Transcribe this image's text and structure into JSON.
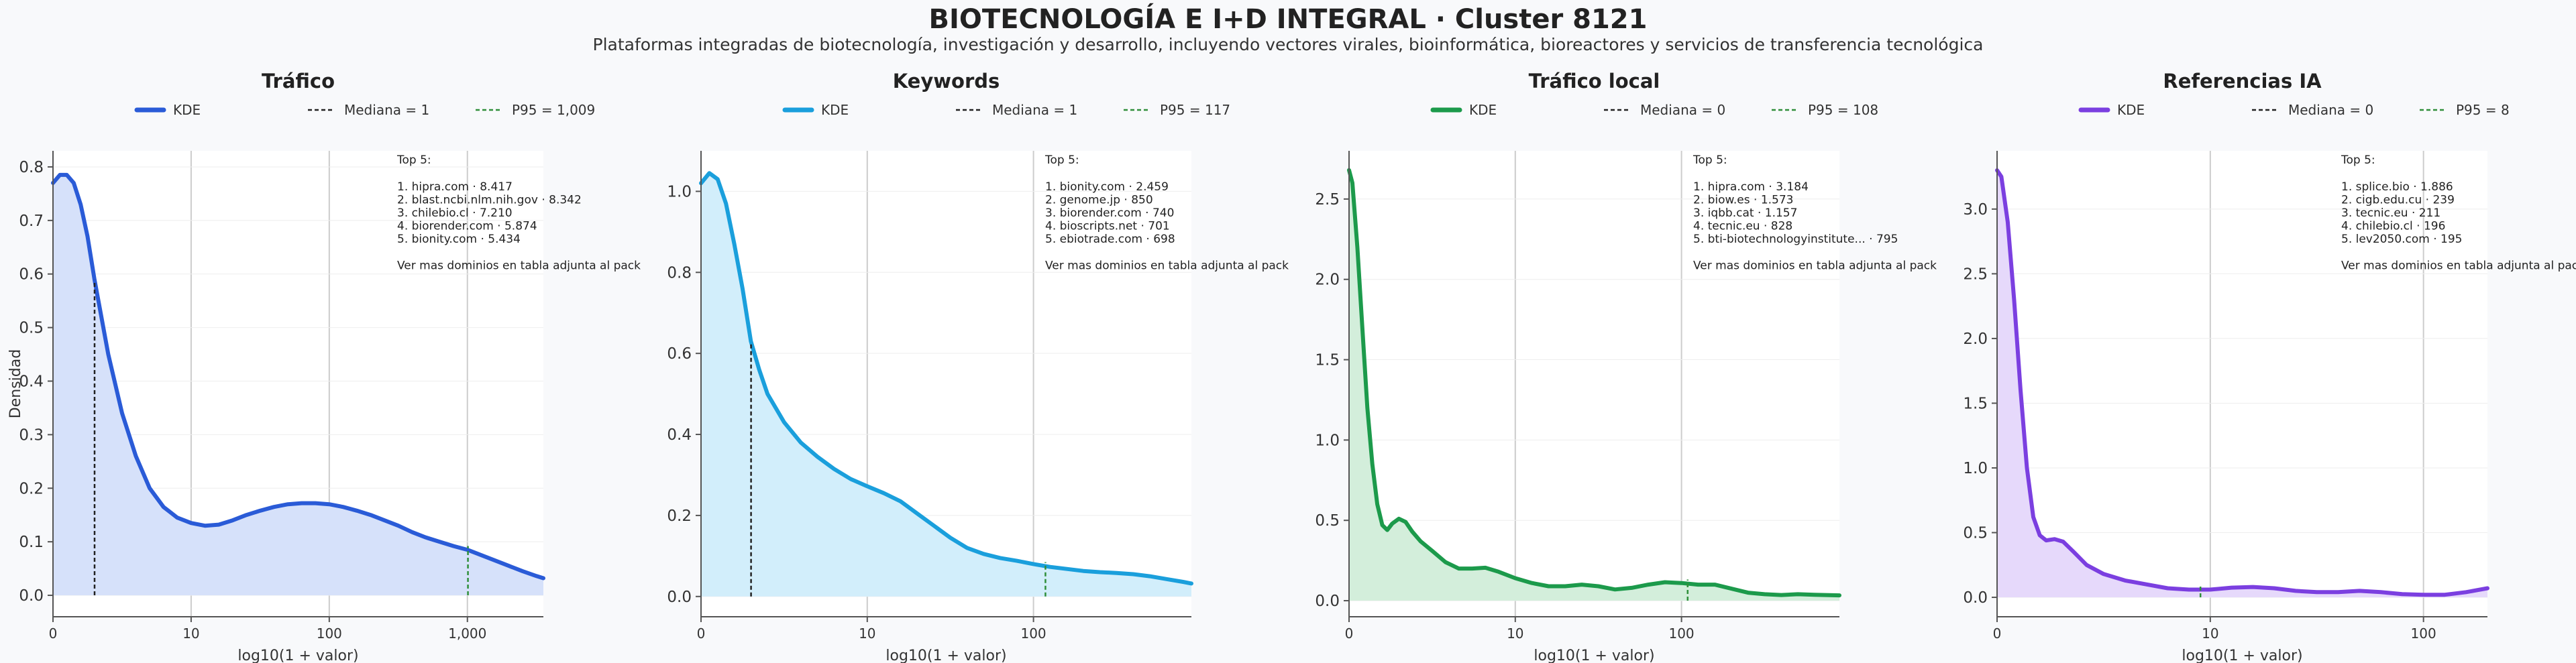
{
  "title": "BIOTECNOLOGÍA E I+D INTEGRAL · Cluster 8121",
  "subtitle": "Plataformas integradas de biotecnología, investigación y desarrollo, incluyendo vectores virales, bioinformática, bioreactores y servicios de transferencia tecnológica",
  "shared": {
    "ylabel": "Densidad",
    "xlabel": "log10(1 + valor)",
    "legend_kde": "KDE",
    "top_heading": "Top 5:",
    "more_note": "Ver mas dominios en tabla adjunta al pack"
  },
  "colors": {
    "background": "#f8f9fb",
    "median_line": "#222222",
    "p95_line": "#2f8f3a"
  },
  "chart_data": [
    {
      "type": "area",
      "title": "Tráfico",
      "color": "#2a5bd7",
      "fill": "#d6e1fa",
      "x_scale": "log10(1+x)",
      "xlim": [
        0,
        3.55
      ],
      "ylim": [
        -0.04,
        0.83
      ],
      "x_ticks": [
        {
          "value": 0,
          "label": "0"
        },
        {
          "value": 1,
          "label": "10"
        },
        {
          "value": 2,
          "label": "100"
        },
        {
          "value": 3,
          "label": "1,000"
        }
      ],
      "y_ticks": [
        {
          "value": 0,
          "label": "0.0"
        },
        {
          "value": 0.1,
          "label": "0.1"
        },
        {
          "value": 0.2,
          "label": "0.2"
        },
        {
          "value": 0.3,
          "label": "0.3"
        },
        {
          "value": 0.4,
          "label": "0.4"
        },
        {
          "value": 0.5,
          "label": "0.5"
        },
        {
          "value": 0.6,
          "label": "0.6"
        },
        {
          "value": 0.7,
          "label": "0.7"
        },
        {
          "value": 0.8,
          "label": "0.8"
        }
      ],
      "median": {
        "label": "Mediana = 1",
        "x": 0.301
      },
      "p95": {
        "label": "P95 = 1,009",
        "x": 3.004
      },
      "kde": [
        [
          0,
          0.77
        ],
        [
          0.05,
          0.785
        ],
        [
          0.1,
          0.785
        ],
        [
          0.15,
          0.77
        ],
        [
          0.2,
          0.73
        ],
        [
          0.25,
          0.67
        ],
        [
          0.3,
          0.59
        ],
        [
          0.35,
          0.52
        ],
        [
          0.4,
          0.45
        ],
        [
          0.5,
          0.34
        ],
        [
          0.6,
          0.26
        ],
        [
          0.7,
          0.2
        ],
        [
          0.8,
          0.165
        ],
        [
          0.9,
          0.145
        ],
        [
          1.0,
          0.135
        ],
        [
          1.1,
          0.13
        ],
        [
          1.2,
          0.132
        ],
        [
          1.3,
          0.14
        ],
        [
          1.4,
          0.15
        ],
        [
          1.5,
          0.158
        ],
        [
          1.6,
          0.165
        ],
        [
          1.7,
          0.17
        ],
        [
          1.8,
          0.172
        ],
        [
          1.9,
          0.172
        ],
        [
          2.0,
          0.17
        ],
        [
          2.1,
          0.165
        ],
        [
          2.2,
          0.158
        ],
        [
          2.3,
          0.15
        ],
        [
          2.4,
          0.14
        ],
        [
          2.5,
          0.13
        ],
        [
          2.6,
          0.118
        ],
        [
          2.7,
          0.108
        ],
        [
          2.8,
          0.1
        ],
        [
          2.9,
          0.092
        ],
        [
          3.0,
          0.085
        ],
        [
          3.1,
          0.075
        ],
        [
          3.2,
          0.065
        ],
        [
          3.3,
          0.055
        ],
        [
          3.4,
          0.045
        ],
        [
          3.5,
          0.036
        ],
        [
          3.55,
          0.032
        ]
      ],
      "top5": [
        "1. hipra.com · 8.417",
        "2. blast.ncbi.nlm.nih.gov · 8.342",
        "3. chilebio.cl · 7.210",
        "4. biorender.com · 5.874",
        "5. bionity.com · 5.434"
      ]
    },
    {
      "type": "area",
      "title": "Keywords",
      "color": "#1a9fdc",
      "fill": "#d2eefb",
      "x_scale": "log10(1+x)",
      "xlim": [
        0,
        2.95
      ],
      "ylim": [
        -0.05,
        1.1
      ],
      "x_ticks": [
        {
          "value": 0,
          "label": "0"
        },
        {
          "value": 1,
          "label": "10"
        },
        {
          "value": 2,
          "label": "100"
        }
      ],
      "y_ticks": [
        {
          "value": 0,
          "label": "0.0"
        },
        {
          "value": 0.2,
          "label": "0.2"
        },
        {
          "value": 0.4,
          "label": "0.4"
        },
        {
          "value": 0.6,
          "label": "0.6"
        },
        {
          "value": 0.8,
          "label": "0.8"
        },
        {
          "value": 1.0,
          "label": "1.0"
        }
      ],
      "median": {
        "label": "Mediana = 1",
        "x": 0.301
      },
      "p95": {
        "label": "P95 = 117",
        "x": 2.072
      },
      "kde": [
        [
          0,
          1.02
        ],
        [
          0.05,
          1.045
        ],
        [
          0.1,
          1.03
        ],
        [
          0.15,
          0.97
        ],
        [
          0.2,
          0.87
        ],
        [
          0.25,
          0.76
        ],
        [
          0.3,
          0.63
        ],
        [
          0.35,
          0.56
        ],
        [
          0.4,
          0.5
        ],
        [
          0.5,
          0.43
        ],
        [
          0.6,
          0.38
        ],
        [
          0.7,
          0.345
        ],
        [
          0.8,
          0.315
        ],
        [
          0.9,
          0.29
        ],
        [
          1.0,
          0.272
        ],
        [
          1.1,
          0.255
        ],
        [
          1.2,
          0.235
        ],
        [
          1.3,
          0.205
        ],
        [
          1.4,
          0.175
        ],
        [
          1.5,
          0.145
        ],
        [
          1.6,
          0.12
        ],
        [
          1.7,
          0.105
        ],
        [
          1.8,
          0.095
        ],
        [
          1.9,
          0.088
        ],
        [
          2.0,
          0.08
        ],
        [
          2.1,
          0.073
        ],
        [
          2.2,
          0.068
        ],
        [
          2.3,
          0.063
        ],
        [
          2.4,
          0.06
        ],
        [
          2.5,
          0.058
        ],
        [
          2.6,
          0.055
        ],
        [
          2.7,
          0.05
        ],
        [
          2.8,
          0.043
        ],
        [
          2.9,
          0.036
        ],
        [
          2.95,
          0.032
        ]
      ],
      "top5": [
        "1. bionity.com · 2.459",
        "2. genome.jp · 850",
        "3. biorender.com · 740",
        "4. bioscripts.net · 701",
        "5. ebiotrade.com · 698"
      ]
    },
    {
      "type": "area",
      "title": "Tráfico local",
      "color": "#1c9a4b",
      "fill": "#d3eedb",
      "x_scale": "log10(1+x)",
      "xlim": [
        0,
        2.95
      ],
      "ylim": [
        -0.1,
        2.8
      ],
      "x_ticks": [
        {
          "value": 0,
          "label": "0"
        },
        {
          "value": 1,
          "label": "10"
        },
        {
          "value": 2,
          "label": "100"
        }
      ],
      "y_ticks": [
        {
          "value": 0,
          "label": "0.0"
        },
        {
          "value": 0.5,
          "label": "0.5"
        },
        {
          "value": 1.0,
          "label": "1.0"
        },
        {
          "value": 1.5,
          "label": "1.5"
        },
        {
          "value": 2.0,
          "label": "2.0"
        },
        {
          "value": 2.5,
          "label": "2.5"
        }
      ],
      "median": {
        "label": "Mediana = 0",
        "x": 0
      },
      "p95": {
        "label": "P95 = 108",
        "x": 2.037
      },
      "kde": [
        [
          0,
          2.68
        ],
        [
          0.02,
          2.6
        ],
        [
          0.05,
          2.2
        ],
        [
          0.08,
          1.7
        ],
        [
          0.11,
          1.2
        ],
        [
          0.14,
          0.85
        ],
        [
          0.17,
          0.6
        ],
        [
          0.2,
          0.47
        ],
        [
          0.23,
          0.44
        ],
        [
          0.26,
          0.48
        ],
        [
          0.3,
          0.51
        ],
        [
          0.34,
          0.49
        ],
        [
          0.38,
          0.43
        ],
        [
          0.43,
          0.37
        ],
        [
          0.5,
          0.31
        ],
        [
          0.58,
          0.24
        ],
        [
          0.66,
          0.2
        ],
        [
          0.74,
          0.2
        ],
        [
          0.82,
          0.205
        ],
        [
          0.9,
          0.18
        ],
        [
          1.0,
          0.14
        ],
        [
          1.1,
          0.11
        ],
        [
          1.2,
          0.09
        ],
        [
          1.3,
          0.09
        ],
        [
          1.4,
          0.1
        ],
        [
          1.5,
          0.09
        ],
        [
          1.6,
          0.07
        ],
        [
          1.7,
          0.08
        ],
        [
          1.8,
          0.1
        ],
        [
          1.9,
          0.115
        ],
        [
          2.0,
          0.11
        ],
        [
          2.1,
          0.1
        ],
        [
          2.2,
          0.1
        ],
        [
          2.3,
          0.075
        ],
        [
          2.4,
          0.05
        ],
        [
          2.5,
          0.04
        ],
        [
          2.6,
          0.035
        ],
        [
          2.7,
          0.04
        ],
        [
          2.8,
          0.037
        ],
        [
          2.95,
          0.033
        ]
      ],
      "top5": [
        "1. hipra.com · 3.184",
        "2. biow.es · 1.573",
        "3. iqbb.cat · 1.157",
        "4. tecnic.eu · 828",
        "5. bti-biotechnologyinstitute... · 795"
      ]
    },
    {
      "type": "area",
      "title": "Referencias IA",
      "color": "#7b3fe0",
      "fill": "#e6d9fb",
      "x_scale": "log10(1+x)",
      "xlim": [
        0,
        2.3
      ],
      "ylim": [
        -0.15,
        3.45
      ],
      "x_ticks": [
        {
          "value": 0,
          "label": "0"
        },
        {
          "value": 1,
          "label": "10"
        },
        {
          "value": 2,
          "label": "100"
        }
      ],
      "y_ticks": [
        {
          "value": 0,
          "label": "0.0"
        },
        {
          "value": 0.5,
          "label": "0.5"
        },
        {
          "value": 1.0,
          "label": "1.0"
        },
        {
          "value": 1.5,
          "label": "1.5"
        },
        {
          "value": 2.0,
          "label": "2.0"
        },
        {
          "value": 2.5,
          "label": "2.5"
        },
        {
          "value": 3.0,
          "label": "3.0"
        }
      ],
      "median": {
        "label": "Mediana = 0",
        "x": 0
      },
      "p95": {
        "label": "P95 = 8",
        "x": 0.954
      },
      "kde": [
        [
          0,
          3.3
        ],
        [
          0.02,
          3.25
        ],
        [
          0.05,
          2.9
        ],
        [
          0.08,
          2.3
        ],
        [
          0.11,
          1.6
        ],
        [
          0.14,
          1.0
        ],
        [
          0.17,
          0.62
        ],
        [
          0.2,
          0.48
        ],
        [
          0.23,
          0.44
        ],
        [
          0.27,
          0.45
        ],
        [
          0.31,
          0.43
        ],
        [
          0.36,
          0.35
        ],
        [
          0.42,
          0.25
        ],
        [
          0.5,
          0.18
        ],
        [
          0.6,
          0.13
        ],
        [
          0.7,
          0.1
        ],
        [
          0.8,
          0.07
        ],
        [
          0.9,
          0.06
        ],
        [
          1.0,
          0.06
        ],
        [
          1.1,
          0.075
        ],
        [
          1.2,
          0.08
        ],
        [
          1.3,
          0.07
        ],
        [
          1.4,
          0.05
        ],
        [
          1.5,
          0.04
        ],
        [
          1.6,
          0.04
        ],
        [
          1.7,
          0.05
        ],
        [
          1.8,
          0.04
        ],
        [
          1.9,
          0.025
        ],
        [
          2.0,
          0.02
        ],
        [
          2.1,
          0.02
        ],
        [
          2.2,
          0.04
        ],
        [
          2.3,
          0.07
        ]
      ],
      "top5": [
        "1. splice.bio · 1.886",
        "2. cigb.edu.cu · 239",
        "3. tecnic.eu · 211",
        "4. chilebio.cl · 196",
        "5. lev2050.com · 195"
      ]
    }
  ]
}
